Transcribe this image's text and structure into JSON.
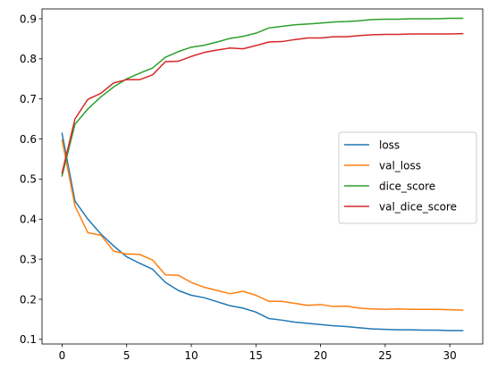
{
  "chart_data": {
    "type": "line",
    "title": "",
    "xlabel": "",
    "ylabel": "",
    "xlim": [
      -1.55,
      32.55
    ],
    "ylim": [
      0.0885,
      0.9245
    ],
    "x_ticks": [
      0,
      5,
      10,
      15,
      20,
      25,
      30
    ],
    "y_ticks": [
      0.1,
      0.2,
      0.3,
      0.4,
      0.5,
      0.6,
      0.7,
      0.8,
      0.9
    ],
    "x_tick_labels": [
      "0",
      "5",
      "10",
      "15",
      "20",
      "25",
      "30"
    ],
    "y_tick_labels": [
      "0.1",
      "0.2",
      "0.3",
      "0.4",
      "0.5",
      "0.6",
      "0.7",
      "0.8",
      "0.9"
    ],
    "grid": false,
    "legend_position": "center-right",
    "x": [
      0,
      1,
      2,
      3,
      4,
      5,
      6,
      7,
      8,
      9,
      10,
      11,
      12,
      13,
      14,
      15,
      16,
      17,
      18,
      19,
      20,
      21,
      22,
      23,
      24,
      25,
      26,
      27,
      28,
      29,
      30,
      31
    ],
    "series": [
      {
        "name": "loss",
        "color": "#1f77b4",
        "values": [
          0.614,
          0.445,
          0.4,
          0.363,
          0.333,
          0.306,
          0.29,
          0.275,
          0.242,
          0.222,
          0.21,
          0.204,
          0.194,
          0.184,
          0.178,
          0.168,
          0.152,
          0.148,
          0.143,
          0.14,
          0.137,
          0.134,
          0.132,
          0.129,
          0.126,
          0.125,
          0.124,
          0.124,
          0.123,
          0.123,
          0.122,
          0.122
        ]
      },
      {
        "name": "val_loss",
        "color": "#ff7f0e",
        "values": [
          0.598,
          0.433,
          0.366,
          0.36,
          0.32,
          0.313,
          0.312,
          0.298,
          0.261,
          0.26,
          0.242,
          0.23,
          0.222,
          0.214,
          0.22,
          0.21,
          0.195,
          0.195,
          0.19,
          0.185,
          0.187,
          0.182,
          0.183,
          0.178,
          0.176,
          0.175,
          0.176,
          0.175,
          0.175,
          0.175,
          0.174,
          0.173
        ]
      },
      {
        "name": "dice_score",
        "color": "#2ca02c",
        "values": [
          0.508,
          0.637,
          0.675,
          0.705,
          0.73,
          0.75,
          0.764,
          0.777,
          0.804,
          0.818,
          0.829,
          0.834,
          0.842,
          0.851,
          0.856,
          0.864,
          0.877,
          0.881,
          0.885,
          0.887,
          0.889,
          0.892,
          0.893,
          0.895,
          0.898,
          0.899,
          0.899,
          0.9,
          0.9,
          0.9,
          0.901,
          0.901
        ]
      },
      {
        "name": "val_dice_score",
        "color": "#d62728",
        "values": [
          0.515,
          0.65,
          0.699,
          0.714,
          0.74,
          0.748,
          0.748,
          0.76,
          0.793,
          0.794,
          0.806,
          0.816,
          0.822,
          0.827,
          0.825,
          0.833,
          0.842,
          0.843,
          0.848,
          0.852,
          0.852,
          0.855,
          0.855,
          0.858,
          0.86,
          0.861,
          0.861,
          0.862,
          0.862,
          0.862,
          0.862,
          0.863
        ]
      }
    ]
  }
}
